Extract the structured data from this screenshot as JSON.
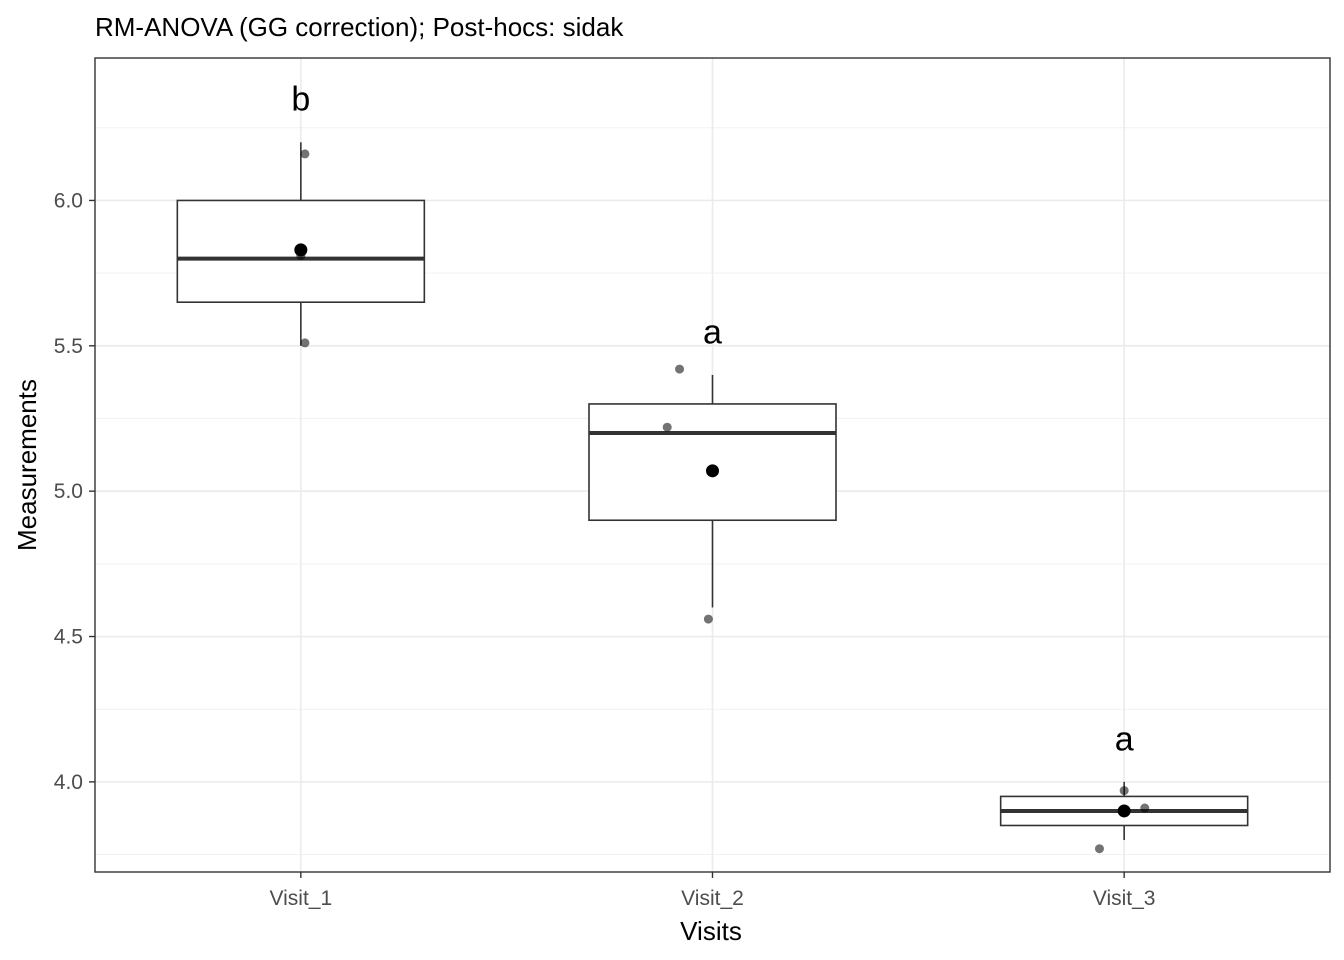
{
  "chart_data": {
    "type": "boxplot",
    "title": "RM-ANOVA (GG correction); Post-hocs: sidak",
    "xlabel": "Visits",
    "ylabel": "Measurements",
    "ylim": [
      3.69,
      6.49
    ],
    "yticks": [
      4.0,
      4.5,
      5.0,
      5.5,
      6.0
    ],
    "ytick_labels": [
      "4.0",
      "4.5",
      "5.0",
      "5.5",
      "6.0"
    ],
    "grid": true,
    "categories": [
      "Visit_1",
      "Visit_2",
      "Visit_3"
    ],
    "boxes": [
      {
        "whisker_low": 5.5,
        "q1": 5.65,
        "median": 5.8,
        "q3": 6.0,
        "whisker_high": 6.2,
        "mean": 5.83,
        "letter": "b",
        "letter_y": 6.35,
        "points": [
          {
            "x_offset": 0.01,
            "y": 6.16
          },
          {
            "x_offset": 0.0,
            "y": 5.81
          },
          {
            "x_offset": 0.01,
            "y": 5.51
          }
        ]
      },
      {
        "whisker_low": 4.6,
        "q1": 4.9,
        "median": 5.2,
        "q3": 5.3,
        "whisker_high": 5.4,
        "mean": 5.07,
        "letter": "a",
        "letter_y": 5.55,
        "points": [
          {
            "x_offset": -0.08,
            "y": 5.42
          },
          {
            "x_offset": -0.11,
            "y": 5.22
          },
          {
            "x_offset": -0.01,
            "y": 4.56
          }
        ]
      },
      {
        "whisker_low": 3.8,
        "q1": 3.85,
        "median": 3.9,
        "q3": 3.95,
        "whisker_high": 4.0,
        "mean": 3.9,
        "letter": "a",
        "letter_y": 4.15,
        "points": [
          {
            "x_offset": 0.0,
            "y": 3.97
          },
          {
            "x_offset": 0.05,
            "y": 3.91
          },
          {
            "x_offset": -0.06,
            "y": 3.77
          }
        ]
      }
    ]
  }
}
